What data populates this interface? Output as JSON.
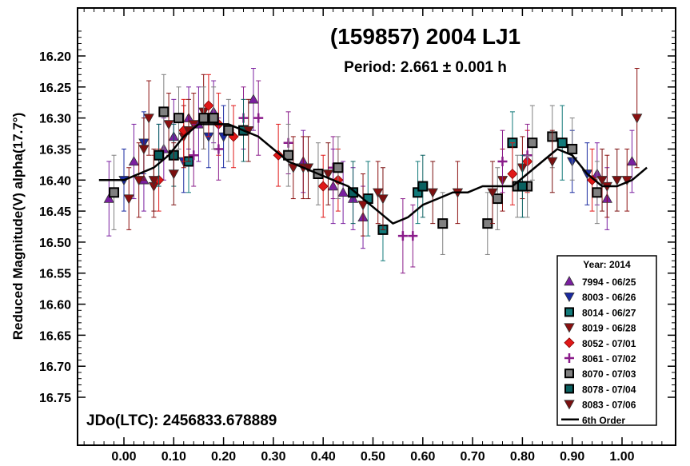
{
  "chart_data": {
    "type": "scatter",
    "title": "(159857) 2004 LJ1",
    "subtitle": "Period: 2.661 ± 0.001 h",
    "xlabel": "",
    "ylabel": "Reduced Magnitude(V) alpha(17.7°)",
    "annotation": "JDo(LTC): 2456833.678889",
    "xlim": [
      -0.08,
      1.12
    ],
    "ylim": [
      16.15,
      16.8
    ],
    "y_inverted": true,
    "x_ticks": [
      "0.00",
      "0.10",
      "0.20",
      "0.30",
      "0.40",
      "0.50",
      "0.60",
      "0.70",
      "0.80",
      "0.90",
      "1.00"
    ],
    "x_tick_values": [
      0.0,
      0.1,
      0.2,
      0.3,
      0.4,
      0.5,
      0.6,
      0.7,
      0.8,
      0.9,
      1.0
    ],
    "y_ticks": [
      "16.20",
      "16.25",
      "16.30",
      "16.35",
      "16.40",
      "16.45",
      "16.50",
      "16.55",
      "16.60",
      "16.65",
      "16.70",
      "16.75"
    ],
    "y_tick_values": [
      16.2,
      16.25,
      16.3,
      16.35,
      16.4,
      16.45,
      16.5,
      16.55,
      16.6,
      16.65,
      16.7,
      16.75
    ],
    "legend": {
      "title": "Year: 2014",
      "placement": "bottom-right",
      "fit_label": "6th Order"
    },
    "series": [
      {
        "name": "7994 - 06/25",
        "marker": "triangle-up",
        "color": "#7a1fa0",
        "points": [
          [
            -0.03,
            16.43,
            0.06
          ],
          [
            0.02,
            16.37,
            0.06
          ],
          [
            0.04,
            16.4,
            0.05
          ],
          [
            0.08,
            16.35,
            0.05
          ],
          [
            0.1,
            16.33,
            0.06
          ],
          [
            0.13,
            16.3,
            0.05
          ],
          [
            0.15,
            16.31,
            0.06
          ],
          [
            0.18,
            16.29,
            0.05
          ],
          [
            0.26,
            16.27,
            0.05
          ],
          [
            0.36,
            16.37,
            0.05
          ],
          [
            0.42,
            16.41,
            0.06
          ],
          [
            0.44,
            16.42,
            0.05
          ],
          [
            0.46,
            16.43,
            0.05
          ],
          [
            0.48,
            16.46,
            0.05
          ],
          [
            0.95,
            16.39,
            0.05
          ],
          [
            0.97,
            16.43,
            0.05
          ],
          [
            1.02,
            16.37,
            0.05
          ]
        ]
      },
      {
        "name": "8003 - 06/26",
        "marker": "triangle-down",
        "color": "#1a2aa0",
        "points": [
          [
            0.0,
            16.4,
            0.05
          ],
          [
            0.04,
            16.34,
            0.05
          ],
          [
            0.07,
            16.36,
            0.05
          ],
          [
            0.12,
            16.37,
            0.05
          ],
          [
            0.17,
            16.33,
            0.05
          ],
          [
            0.2,
            16.33,
            0.05
          ],
          [
            0.9,
            16.37,
            0.05
          ],
          [
            0.93,
            16.39,
            0.05
          ]
        ]
      },
      {
        "name": "8014 - 06/27",
        "marker": "square",
        "color": "#127a7a",
        "points": [
          [
            0.13,
            16.37,
            0.05
          ],
          [
            0.49,
            16.43,
            0.06
          ],
          [
            0.52,
            16.48,
            0.05
          ],
          [
            0.59,
            16.42,
            0.05
          ],
          [
            0.78,
            16.34,
            0.05
          ],
          [
            0.88,
            16.34,
            0.06
          ]
        ]
      },
      {
        "name": "8019 - 06/28",
        "marker": "triangle-down",
        "color": "#8b1010",
        "points": [
          [
            0.01,
            16.43,
            0.05
          ],
          [
            0.03,
            16.4,
            0.06
          ],
          [
            0.05,
            16.3,
            0.06
          ],
          [
            0.06,
            16.41,
            0.05
          ],
          [
            0.09,
            16.31,
            0.05
          ],
          [
            0.12,
            16.33,
            0.05
          ],
          [
            0.14,
            16.31,
            0.05
          ],
          [
            0.16,
            16.29,
            0.06
          ],
          [
            0.34,
            16.38,
            0.05
          ],
          [
            0.36,
            16.38,
            0.05
          ],
          [
            0.48,
            16.44,
            0.05
          ],
          [
            0.51,
            16.42,
            0.05
          ],
          [
            0.67,
            16.42,
            0.05
          ],
          [
            0.76,
            16.4,
            0.05
          ],
          [
            0.8,
            16.38,
            0.05
          ],
          [
            0.97,
            16.41,
            0.05
          ],
          [
            1.01,
            16.4,
            0.05
          ],
          [
            1.03,
            16.3,
            0.08
          ]
        ]
      },
      {
        "name": "8052 - 07/01",
        "marker": "diamond",
        "color": "#e01818",
        "points": [
          [
            0.07,
            16.4,
            0.05
          ],
          [
            0.12,
            16.32,
            0.05
          ],
          [
            0.17,
            16.28,
            0.05
          ],
          [
            0.19,
            16.31,
            0.05
          ],
          [
            0.22,
            16.33,
            0.05
          ],
          [
            0.31,
            16.36,
            0.05
          ],
          [
            0.4,
            16.41,
            0.05
          ],
          [
            0.43,
            16.4,
            0.05
          ],
          [
            0.78,
            16.39,
            0.05
          ],
          [
            0.81,
            16.37,
            0.05
          ],
          [
            0.94,
            16.4,
            0.05
          ]
        ]
      },
      {
        "name": "8061 - 07/02",
        "marker": "plus",
        "color": "#8a1b8a",
        "points": [
          [
            0.14,
            16.36,
            0.05
          ],
          [
            0.19,
            16.35,
            0.05
          ],
          [
            0.24,
            16.3,
            0.05
          ],
          [
            0.27,
            16.3,
            0.06
          ],
          [
            0.33,
            16.34,
            0.05
          ],
          [
            0.42,
            16.38,
            0.05
          ],
          [
            0.56,
            16.49,
            0.06
          ],
          [
            0.58,
            16.49,
            0.05
          ],
          [
            0.76,
            16.37,
            0.05
          ],
          [
            0.81,
            16.36,
            0.05
          ]
        ]
      },
      {
        "name": "8070 - 07/03",
        "marker": "square",
        "color": "#808080",
        "points": [
          [
            -0.02,
            16.42,
            0.06
          ],
          [
            0.08,
            16.29,
            0.06
          ],
          [
            0.11,
            16.3,
            0.05
          ],
          [
            0.16,
            16.3,
            0.05
          ],
          [
            0.18,
            16.3,
            0.05
          ],
          [
            0.21,
            16.32,
            0.05
          ],
          [
            0.33,
            16.36,
            0.05
          ],
          [
            0.39,
            16.39,
            0.05
          ],
          [
            0.43,
            16.38,
            0.05
          ],
          [
            0.64,
            16.47,
            0.05
          ],
          [
            0.73,
            16.47,
            0.05
          ],
          [
            0.75,
            16.43,
            0.05
          ],
          [
            0.79,
            16.41,
            0.05
          ],
          [
            0.81,
            16.41,
            0.05
          ],
          [
            0.82,
            16.34,
            0.06
          ],
          [
            0.86,
            16.33,
            0.05
          ],
          [
            0.9,
            16.35,
            0.05
          ],
          [
            0.95,
            16.42,
            0.05
          ]
        ]
      },
      {
        "name": "8078 - 07/04",
        "marker": "square",
        "color": "#0a6060",
        "points": [
          [
            0.07,
            16.36,
            0.05
          ],
          [
            0.1,
            16.36,
            0.05
          ],
          [
            0.24,
            16.32,
            0.05
          ],
          [
            0.46,
            16.42,
            0.05
          ],
          [
            0.6,
            16.41,
            0.05
          ],
          [
            0.8,
            16.41,
            0.05
          ]
        ]
      },
      {
        "name": "8083 - 07/06",
        "marker": "triangle-down",
        "color": "#7a1010",
        "points": [
          [
            0.04,
            16.35,
            0.05
          ],
          [
            0.06,
            16.4,
            0.05
          ],
          [
            0.1,
            16.39,
            0.05
          ],
          [
            0.13,
            16.32,
            0.05
          ],
          [
            0.25,
            16.32,
            0.05
          ],
          [
            0.37,
            16.38,
            0.05
          ],
          [
            0.41,
            16.39,
            0.05
          ],
          [
            0.52,
            16.43,
            0.05
          ],
          [
            0.62,
            16.42,
            0.05
          ],
          [
            0.74,
            16.42,
            0.05
          ],
          [
            0.86,
            16.37,
            0.05
          ],
          [
            0.96,
            16.4,
            0.05
          ],
          [
            0.99,
            16.4,
            0.05
          ]
        ]
      }
    ],
    "fit_curve": {
      "name": "6th Order",
      "x": [
        -0.05,
        -0.02,
        0.0,
        0.03,
        0.06,
        0.09,
        0.12,
        0.15,
        0.18,
        0.21,
        0.24,
        0.27,
        0.3,
        0.33,
        0.36,
        0.39,
        0.42,
        0.45,
        0.48,
        0.51,
        0.54,
        0.57,
        0.6,
        0.63,
        0.66,
        0.69,
        0.72,
        0.75,
        0.78,
        0.81,
        0.84,
        0.87,
        0.9,
        0.93,
        0.96,
        0.99,
        1.02,
        1.05
      ],
      "y": [
        16.4,
        16.4,
        16.4,
        16.39,
        16.38,
        16.36,
        16.33,
        16.31,
        16.31,
        16.31,
        16.32,
        16.33,
        16.35,
        16.37,
        16.38,
        16.39,
        16.4,
        16.41,
        16.43,
        16.45,
        16.47,
        16.46,
        16.44,
        16.43,
        16.42,
        16.42,
        16.41,
        16.41,
        16.41,
        16.39,
        16.37,
        16.35,
        16.36,
        16.39,
        16.41,
        16.41,
        16.4,
        16.38
      ]
    }
  }
}
